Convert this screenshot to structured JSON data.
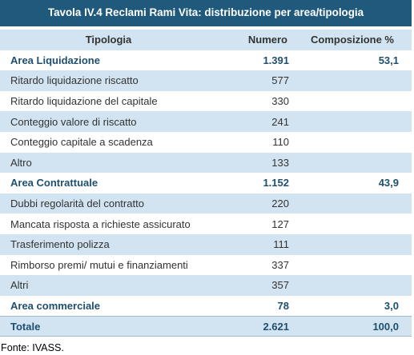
{
  "table": {
    "title": "Tavola IV.4 Reclami Rami Vita: distribuzione per area/tipologia",
    "headers": {
      "tipologia": "Tipologia",
      "numero": "Numero",
      "composizione": "Composizione %"
    },
    "rows": [
      {
        "label": "Area Liquidazione",
        "numero": "1.391",
        "composizione": "53,1"
      },
      {
        "label": "Ritardo liquidazione riscatto",
        "numero": "577",
        "composizione": ""
      },
      {
        "label": "Ritardo liquidazione del capitale",
        "numero": "330",
        "composizione": ""
      },
      {
        "label": "Conteggio valore di riscatto",
        "numero": "241",
        "composizione": ""
      },
      {
        "label": "Conteggio capitale a scadenza",
        "numero": "110",
        "composizione": ""
      },
      {
        "label": "Altro",
        "numero": "133",
        "composizione": ""
      },
      {
        "label": "Area Contrattuale",
        "numero": "1.152",
        "composizione": "43,9"
      },
      {
        "label": "Dubbi regolarità del contratto",
        "numero": "220",
        "composizione": ""
      },
      {
        "label": "Mancata risposta a richieste assicurato",
        "numero": "127",
        "composizione": ""
      },
      {
        "label": "Trasferimento polizza",
        "numero": "111",
        "composizione": ""
      },
      {
        "label": "Rimborso premi/ mutui e finanziamenti",
        "numero": "337",
        "composizione": ""
      },
      {
        "label": "Altri",
        "numero": "357",
        "composizione": ""
      },
      {
        "label": "Area commerciale",
        "numero": "78",
        "composizione": "3,0"
      },
      {
        "label": "Totale",
        "numero": "2.621",
        "composizione": "100,0"
      }
    ],
    "source": "Fonte: IVASS."
  }
}
